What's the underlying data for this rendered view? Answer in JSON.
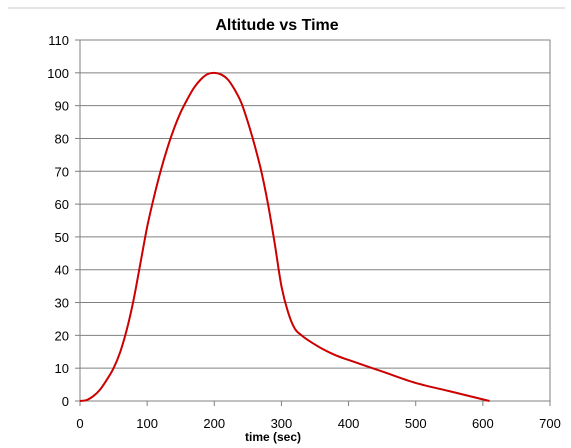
{
  "chart_data": {
    "type": "line",
    "title": "Altitude vs Time",
    "xlabel": "time (sec)",
    "ylabel": "",
    "xlim": [
      0,
      700
    ],
    "ylim": [
      0,
      110
    ],
    "x_ticks": [
      "0",
      "100",
      "200",
      "300",
      "400",
      "500",
      "600",
      "700"
    ],
    "y_ticks": [
      "0",
      "10",
      "20",
      "30",
      "40",
      "50",
      "60",
      "70",
      "80",
      "90",
      "100",
      "110"
    ],
    "grid": true,
    "legend": "none",
    "series": [
      {
        "color": "#cc0000",
        "points": [
          [
            0,
            0
          ],
          [
            10,
            0.3
          ],
          [
            20,
            1.5
          ],
          [
            30,
            3.5
          ],
          [
            40,
            6.5
          ],
          [
            50,
            10
          ],
          [
            60,
            15
          ],
          [
            70,
            22
          ],
          [
            80,
            31
          ],
          [
            90,
            42
          ],
          [
            100,
            53
          ],
          [
            110,
            62
          ],
          [
            120,
            70
          ],
          [
            130,
            77
          ],
          [
            140,
            83
          ],
          [
            150,
            88
          ],
          [
            160,
            92
          ],
          [
            170,
            95.5
          ],
          [
            180,
            98
          ],
          [
            190,
            99.6
          ],
          [
            200,
            100
          ],
          [
            210,
            99.5
          ],
          [
            220,
            98
          ],
          [
            230,
            95
          ],
          [
            240,
            91
          ],
          [
            250,
            85
          ],
          [
            260,
            78
          ],
          [
            270,
            70
          ],
          [
            280,
            60
          ],
          [
            290,
            48
          ],
          [
            300,
            35
          ],
          [
            310,
            27
          ],
          [
            320,
            22
          ],
          [
            330,
            20
          ],
          [
            340,
            18.5
          ],
          [
            360,
            16
          ],
          [
            380,
            14
          ],
          [
            400,
            12.5
          ],
          [
            450,
            9
          ],
          [
            500,
            5.5
          ],
          [
            550,
            3
          ],
          [
            600,
            0.5
          ],
          [
            610,
            0
          ]
        ]
      }
    ]
  }
}
